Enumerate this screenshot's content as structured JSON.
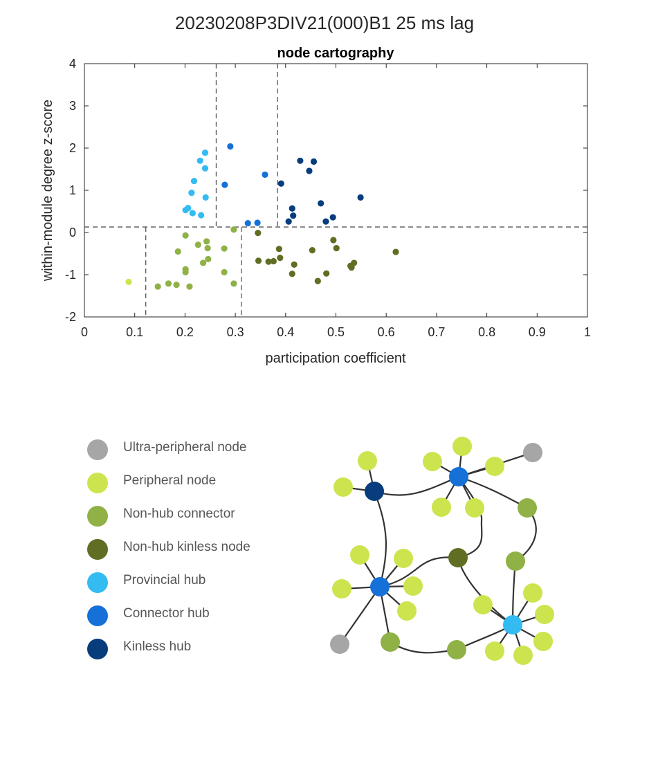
{
  "figure": {
    "title": "20230208P3DIV21(000)B1 25 ms lag"
  },
  "colors": {
    "ultra_peripheral": "#a6a6a6",
    "peripheral": "#cde44f",
    "non_hub_connector": "#8fb146",
    "non_hub_kinless": "#5f6e23",
    "provincial_hub": "#33bbf2",
    "connector_hub": "#1570d8",
    "kinless_hub": "#073c7d",
    "dashed_line": "#555555",
    "network_edge": "#333333"
  },
  "chart_data": {
    "type": "scatter",
    "title": "node cartography",
    "xlabel": "participation coefficient",
    "ylabel": "within-module degree z-score",
    "xlim": [
      0,
      1
    ],
    "ylim": [
      -2,
      4
    ],
    "xticks": [
      0,
      0.1,
      0.2,
      0.3,
      0.4,
      0.5,
      0.6,
      0.7,
      0.8,
      0.9,
      1
    ],
    "xtick_labels": [
      "0",
      "0.1",
      "0.2",
      "0.3",
      "0.4",
      "0.5",
      "0.6",
      "0.7",
      "0.8",
      "0.9",
      "1"
    ],
    "yticks": [
      -2,
      -1,
      0,
      1,
      2,
      3,
      4
    ],
    "ytick_labels": [
      "-2",
      "-1",
      "0",
      "1",
      "2",
      "3",
      "4"
    ],
    "grid": false,
    "thresholds": {
      "z_hub": 0.13,
      "hub_p": [
        0.262,
        0.384
      ],
      "nonhub_p": [
        0.122,
        0.312
      ]
    },
    "series": [
      {
        "role": "peripheral",
        "color_key": "peripheral",
        "points": [
          [
            0.088,
            -1.17
          ]
        ]
      },
      {
        "role": "non_hub_connector",
        "color_key": "non_hub_connector",
        "points": [
          [
            0.146,
            -1.28
          ],
          [
            0.167,
            -1.21
          ],
          [
            0.183,
            -1.24
          ],
          [
            0.186,
            -0.45
          ],
          [
            0.201,
            -0.07
          ],
          [
            0.201,
            -0.87
          ],
          [
            0.201,
            -0.94
          ],
          [
            0.209,
            -1.28
          ],
          [
            0.226,
            -0.29
          ],
          [
            0.236,
            -0.72
          ],
          [
            0.243,
            -0.21
          ],
          [
            0.245,
            -0.37
          ],
          [
            0.246,
            -0.63
          ],
          [
            0.278,
            -0.38
          ],
          [
            0.278,
            -0.94
          ],
          [
            0.297,
            0.07
          ],
          [
            0.297,
            -1.21
          ]
        ]
      },
      {
        "role": "non_hub_kinless",
        "color_key": "non_hub_kinless",
        "points": [
          [
            0.345,
            -0.01
          ],
          [
            0.346,
            -0.67
          ],
          [
            0.366,
            -0.69
          ],
          [
            0.376,
            -0.68
          ],
          [
            0.387,
            -0.39
          ],
          [
            0.389,
            -0.6
          ],
          [
            0.413,
            -0.98
          ],
          [
            0.417,
            -0.76
          ],
          [
            0.453,
            -0.42
          ],
          [
            0.464,
            -1.15
          ],
          [
            0.481,
            -0.97
          ],
          [
            0.495,
            -0.18
          ],
          [
            0.501,
            -0.37
          ],
          [
            0.529,
            -0.79
          ],
          [
            0.531,
            -0.83
          ],
          [
            0.536,
            -0.72
          ],
          [
            0.619,
            -0.46
          ]
        ]
      },
      {
        "role": "provincial_hub",
        "color_key": "provincial_hub",
        "points": [
          [
            0.201,
            0.53
          ],
          [
            0.206,
            0.58
          ],
          [
            0.213,
            0.94
          ],
          [
            0.215,
            0.46
          ],
          [
            0.218,
            1.22
          ],
          [
            0.23,
            1.7
          ],
          [
            0.232,
            0.41
          ],
          [
            0.24,
            1.89
          ],
          [
            0.24,
            1.52
          ],
          [
            0.241,
            0.83
          ]
        ]
      },
      {
        "role": "connector_hub",
        "color_key": "connector_hub",
        "points": [
          [
            0.29,
            2.04
          ],
          [
            0.279,
            1.13
          ],
          [
            0.325,
            0.22
          ],
          [
            0.344,
            0.23
          ],
          [
            0.359,
            1.37
          ]
        ]
      },
      {
        "role": "kinless_hub",
        "color_key": "kinless_hub",
        "points": [
          [
            0.391,
            1.16
          ],
          [
            0.406,
            0.26
          ],
          [
            0.413,
            0.57
          ],
          [
            0.415,
            0.4
          ],
          [
            0.429,
            1.7
          ],
          [
            0.447,
            1.46
          ],
          [
            0.456,
            1.68
          ],
          [
            0.47,
            0.69
          ],
          [
            0.48,
            0.26
          ],
          [
            0.494,
            0.36
          ],
          [
            0.549,
            0.83
          ]
        ]
      }
    ]
  },
  "legend": [
    {
      "label": "Ultra-peripheral node",
      "color_key": "ultra_peripheral"
    },
    {
      "label": "Peripheral node",
      "color_key": "peripheral"
    },
    {
      "label": "Non-hub connector",
      "color_key": "non_hub_connector"
    },
    {
      "label": "Non-hub kinless node",
      "color_key": "non_hub_kinless"
    },
    {
      "label": "Provincial hub",
      "color_key": "provincial_hub"
    },
    {
      "label": "Connector hub",
      "color_key": "connector_hub"
    },
    {
      "label": "Kinless hub",
      "color_key": "kinless_hub"
    }
  ],
  "network_diagram": {
    "nodes": [
      {
        "id": "kh",
        "role": "kinless_hub"
      },
      {
        "id": "kh_a",
        "role": "peripheral"
      },
      {
        "id": "kh_b",
        "role": "peripheral"
      },
      {
        "id": "ch1",
        "role": "connector_hub"
      },
      {
        "id": "ch1_a",
        "role": "peripheral"
      },
      {
        "id": "ch1_b",
        "role": "peripheral"
      },
      {
        "id": "ch1_c",
        "role": "peripheral"
      },
      {
        "id": "ch1_d",
        "role": "peripheral"
      },
      {
        "id": "ch1_e",
        "role": "peripheral"
      },
      {
        "id": "up1",
        "role": "ultra_peripheral"
      },
      {
        "id": "nc1",
        "role": "non_hub_connector"
      },
      {
        "id": "nk",
        "role": "non_hub_kinless"
      },
      {
        "id": "nc2",
        "role": "non_hub_connector"
      },
      {
        "id": "ch2",
        "role": "connector_hub"
      },
      {
        "id": "ch2_a",
        "role": "peripheral"
      },
      {
        "id": "ch2_b",
        "role": "peripheral"
      },
      {
        "id": "ch2_c",
        "role": "peripheral"
      },
      {
        "id": "ch2_d",
        "role": "peripheral"
      },
      {
        "id": "ch2_e",
        "role": "peripheral"
      },
      {
        "id": "up2",
        "role": "ultra_peripheral"
      },
      {
        "id": "nc3",
        "role": "non_hub_connector"
      },
      {
        "id": "nc4",
        "role": "non_hub_connector"
      },
      {
        "id": "ph",
        "role": "provincial_hub"
      },
      {
        "id": "ph_a",
        "role": "peripheral"
      },
      {
        "id": "ph_b",
        "role": "peripheral"
      },
      {
        "id": "ph_c",
        "role": "peripheral"
      },
      {
        "id": "ph_d",
        "role": "peripheral"
      },
      {
        "id": "ph_e",
        "role": "peripheral"
      },
      {
        "id": "ph_f",
        "role": "peripheral"
      }
    ],
    "edges": [
      [
        "kh",
        "kh_a"
      ],
      [
        "kh",
        "kh_b"
      ],
      [
        "kh",
        "ch1"
      ],
      [
        "kh",
        "ch2"
      ],
      [
        "ch1",
        "ch1_a"
      ],
      [
        "ch1",
        "ch1_b"
      ],
      [
        "ch1",
        "ch1_c"
      ],
      [
        "ch1",
        "ch1_d"
      ],
      [
        "ch1",
        "ch1_e"
      ],
      [
        "ch1",
        "up1"
      ],
      [
        "ch1",
        "nc1"
      ],
      [
        "ch1",
        "nk"
      ],
      [
        "nc1",
        "nc2"
      ],
      [
        "nc2",
        "ph"
      ],
      [
        "nk",
        "ch2"
      ],
      [
        "nk",
        "ph"
      ],
      [
        "ch2",
        "ch2_a"
      ],
      [
        "ch2",
        "ch2_b"
      ],
      [
        "ch2",
        "ch2_c"
      ],
      [
        "ch2",
        "ch2_d"
      ],
      [
        "ch2",
        "ch2_e"
      ],
      [
        "ch2",
        "up2"
      ],
      [
        "ch2",
        "nc3"
      ],
      [
        "nc3",
        "nc4"
      ],
      [
        "nc4",
        "ph"
      ],
      [
        "ph",
        "ph_a"
      ],
      [
        "ph",
        "ph_b"
      ],
      [
        "ph",
        "ph_c"
      ],
      [
        "ph",
        "ph_d"
      ],
      [
        "ph",
        "ph_e"
      ],
      [
        "ph",
        "ph_f"
      ]
    ]
  }
}
